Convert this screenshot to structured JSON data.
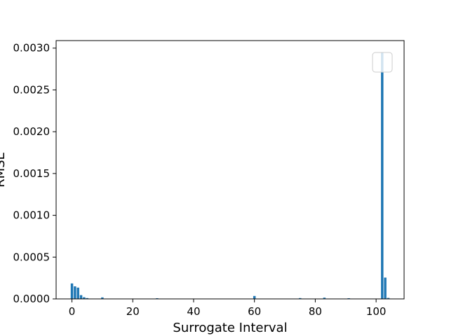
{
  "chart_data": {
    "type": "bar",
    "xlabel": "Surrogate Interval",
    "ylabel": "RMSE",
    "xlim": [
      -5.2,
      109.2
    ],
    "ylim": [
      0,
      0.00309
    ],
    "x_ticks": [
      0,
      20,
      40,
      60,
      80,
      100
    ],
    "y_ticks": [
      0.0,
      0.0005,
      0.001,
      0.0015,
      0.002,
      0.0025,
      0.003
    ],
    "y_tick_labels": [
      "0.0000",
      "0.0005",
      "0.0010",
      "0.0015",
      "0.0020",
      "0.0025",
      "0.0030"
    ],
    "legend": {
      "placement": "upper-right",
      "entries": []
    },
    "grid": false,
    "bar_color": "#1f77b4",
    "series": [
      {
        "x": [
          0,
          1,
          2,
          3,
          4,
          5,
          10,
          28,
          60,
          75,
          83,
          91,
          102,
          103,
          104
        ],
        "values": [
          0.000185,
          0.00015,
          0.000135,
          4.5e-05,
          2e-05,
          1e-05,
          1.8e-05,
          8e-06,
          3.5e-05,
          1e-05,
          1.5e-05,
          8e-06,
          0.00295,
          0.000255,
          1.2e-05
        ]
      }
    ]
  }
}
